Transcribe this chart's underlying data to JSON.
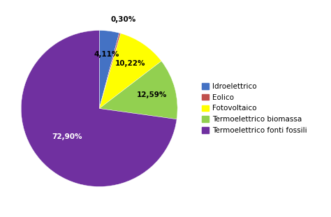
{
  "labels": [
    "Idroelettrico",
    "Eolico",
    "Fotovoltaico",
    "Termoelettrico biomassa",
    "Termoelettrico fonti fossili"
  ],
  "values": [
    4.11,
    0.3,
    10.22,
    12.59,
    72.9
  ],
  "colors": [
    "#4472C4",
    "#C0504D",
    "#FFFF00",
    "#92D050",
    "#7030A0"
  ],
  "pct_labels": [
    "4,11%",
    "0,30%",
    "10,22%",
    "12,59%",
    "72,90%"
  ],
  "pct_colors": [
    "black",
    "black",
    "black",
    "black",
    "white"
  ],
  "background_color": "#FFFFFF",
  "legend_fontsize": 7.5,
  "pct_fontsize": 7.5,
  "startangle": 90,
  "counterclock": false
}
